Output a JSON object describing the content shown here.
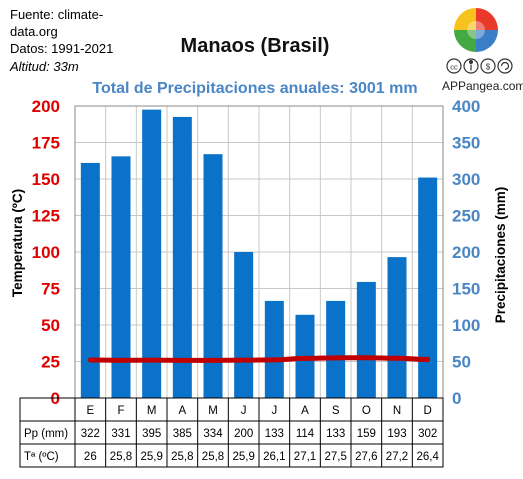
{
  "source": {
    "line1": "Fuente: climate-",
    "line2": "data.org",
    "line3": "Datos: 1991-2021",
    "line4": "Altitud: 33m"
  },
  "brand": "APPangea.com",
  "colors": {
    "bars": "#0a72c8",
    "temp_line": "#c00000",
    "left_axis": "#e00000",
    "right_axis": "#4a86c5"
  },
  "icons": [
    "puzzle-logo-icon",
    "creative-commons-icon",
    "attribution-icon",
    "noncommercial-icon",
    "share-alike-icon"
  ],
  "chart_data": {
    "type": "bar",
    "title": "Manaos (Brasil)",
    "subtitle": "Total de Precipitaciones anuales: 3001 mm",
    "categories": [
      "E",
      "F",
      "M",
      "A",
      "M",
      "J",
      "J",
      "A",
      "S",
      "O",
      "N",
      "D"
    ],
    "series": [
      {
        "name": "Pp (mm)",
        "type": "bar",
        "axis": "right",
        "values": [
          322,
          331,
          395,
          385,
          334,
          200,
          133,
          114,
          133,
          159,
          193,
          302
        ]
      },
      {
        "name": "Tª (ºC)",
        "type": "line",
        "axis": "left",
        "values": [
          26,
          25.8,
          25.9,
          25.8,
          25.8,
          25.9,
          26.1,
          27.1,
          27.5,
          27.6,
          27.2,
          26.4
        ]
      }
    ],
    "table_values": {
      "pp": [
        "322",
        "331",
        "395",
        "385",
        "334",
        "200",
        "133",
        "114",
        "133",
        "159",
        "193",
        "302"
      ],
      "t": [
        "26",
        "25,8",
        "25,9",
        "25,8",
        "25,8",
        "25,9",
        "26,1",
        "27,1",
        "27,5",
        "27,6",
        "27,2",
        "26,4"
      ]
    },
    "ylabel_left": "Temperatura (ºC)",
    "ylabel_right": "Precipitaciones (mm)",
    "ylim_left": [
      0,
      200
    ],
    "ylim_right": [
      0,
      400
    ],
    "yticks_left": [
      "0",
      "25",
      "50",
      "75",
      "100",
      "125",
      "150",
      "175",
      "200"
    ],
    "yticks_right": [
      "0",
      "50",
      "100",
      "150",
      "200",
      "250",
      "300",
      "350",
      "400"
    ],
    "grid": true
  }
}
